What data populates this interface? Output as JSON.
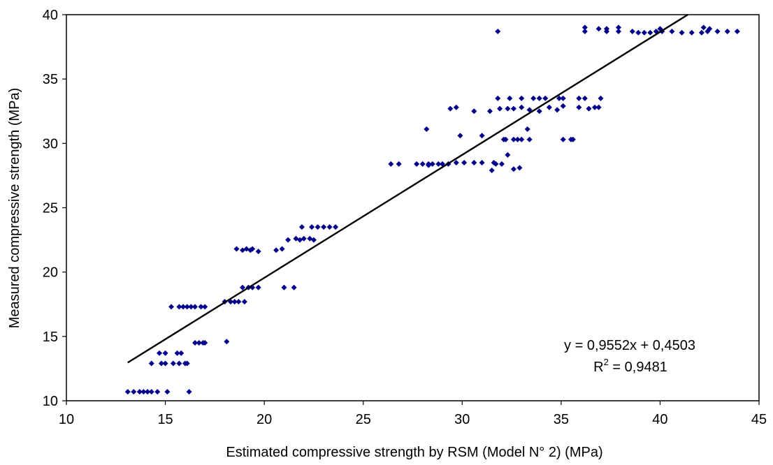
{
  "chart_data": {
    "type": "scatter",
    "title": "",
    "xlabel": "Estimated compressive strength by RSM (Model N° 2) (MPa)",
    "ylabel": "Measured compressive strength (MPa)",
    "xlim": [
      10,
      45
    ],
    "ylim": [
      10,
      40
    ],
    "xticks": [
      "10",
      "15",
      "20",
      "25",
      "30",
      "35",
      "40",
      "45"
    ],
    "yticks": [
      "10",
      "15",
      "20",
      "25",
      "30",
      "35",
      "40"
    ],
    "grid": false,
    "legend": "none",
    "marker_color": "#00008B",
    "trendline": {
      "slope": 0.9552,
      "intercept": 0.4503,
      "x_range": [
        13.1,
        41.4
      ],
      "color": "#000000"
    },
    "annotations": {
      "equation": "y = 0,9552x + 0,4503",
      "r2_prefix": "R",
      "r2_sup": "2",
      "r2_suffix": " = 0,9481"
    },
    "series": [
      {
        "x": [
          13.1,
          13.4,
          13.7,
          13.9,
          14.1,
          14.3,
          14.6,
          15.1,
          16.2,
          14.3,
          14.8,
          15.0,
          15.4,
          15.7,
          16.1,
          16.0,
          14.7,
          15.0,
          15.6,
          15.8,
          16.5,
          16.7,
          16.9,
          17.0,
          15.3,
          15.7,
          15.9,
          16.1,
          16.3,
          16.5,
          16.8,
          17.0,
          18.1,
          18.0,
          18.3,
          18.5,
          18.7,
          19.0,
          18.9,
          19.2,
          19.4,
          19.7,
          21.0,
          21.5,
          18.6,
          18.9,
          19.1,
          19.3,
          19.4,
          19.7,
          20.6,
          20.9,
          21.2,
          21.6,
          21.8,
          22.0,
          22.3,
          22.5,
          21.9,
          22.4,
          22.7,
          23.0,
          23.3,
          23.6,
          26.4,
          26.8,
          27.7,
          28.0,
          28.3,
          28.5,
          28.8,
          29.0,
          29.3,
          29.7,
          30.1,
          30.6,
          31.0,
          31.6,
          31.7,
          32.0,
          32.6,
          32.9,
          28.2,
          28.3,
          29.9,
          31.0,
          32.3,
          31.5,
          33.3,
          29.4,
          29.7,
          30.6,
          31.4,
          31.9,
          32.3,
          32.6,
          33.0,
          33.4,
          33.9,
          34.4,
          34.8,
          35.1,
          35.9,
          36.4,
          36.7,
          36.9,
          31.8,
          32.4,
          33.0,
          33.6,
          33.9,
          34.2,
          34.9,
          35.1,
          35.9,
          36.2,
          37.0,
          32.1,
          32.8,
          32.2,
          32.6,
          33.0,
          33.4,
          35.1,
          35.5,
          35.6,
          31.8,
          36.2,
          36.2,
          36.9,
          37.3,
          37.3,
          37.9,
          37.9,
          38.6,
          38.9,
          39.2,
          39.5,
          39.8,
          40.1,
          40.6,
          41.1,
          41.6,
          42.1,
          42.4,
          42.9,
          43.4,
          43.9,
          40.0,
          42.2,
          42.5
        ],
        "y": [
          10.7,
          10.7,
          10.7,
          10.7,
          10.7,
          10.7,
          10.7,
          10.7,
          10.7,
          12.9,
          12.9,
          12.9,
          12.9,
          12.9,
          12.9,
          12.9,
          13.7,
          13.7,
          13.7,
          13.7,
          14.5,
          14.5,
          14.5,
          14.5,
          17.3,
          17.3,
          17.3,
          17.3,
          17.3,
          17.3,
          17.3,
          17.3,
          14.6,
          17.7,
          17.7,
          17.7,
          17.7,
          17.7,
          18.8,
          18.8,
          18.8,
          18.8,
          18.8,
          18.8,
          21.8,
          21.7,
          21.8,
          21.7,
          21.8,
          21.6,
          21.7,
          21.8,
          22.5,
          22.6,
          22.5,
          22.6,
          22.6,
          22.5,
          23.5,
          23.5,
          23.5,
          23.5,
          23.5,
          23.5,
          28.4,
          28.4,
          28.4,
          28.4,
          28.4,
          28.4,
          28.4,
          28.4,
          28.4,
          28.5,
          28.5,
          28.5,
          28.5,
          28.5,
          28.4,
          28.4,
          28.0,
          28.1,
          31.1,
          28.3,
          30.6,
          30.6,
          29.1,
          27.9,
          31.1,
          32.7,
          32.8,
          32.5,
          32.5,
          32.7,
          32.7,
          32.7,
          32.8,
          32.6,
          32.5,
          32.8,
          32.6,
          32.9,
          32.8,
          32.7,
          32.8,
          32.8,
          33.5,
          33.5,
          33.5,
          33.5,
          33.5,
          33.5,
          33.5,
          33.5,
          33.5,
          33.5,
          33.5,
          30.3,
          30.3,
          30.3,
          30.3,
          30.3,
          30.3,
          30.3,
          30.3,
          30.3,
          38.7,
          39.0,
          38.7,
          38.9,
          38.9,
          38.7,
          39.0,
          38.7,
          38.7,
          38.6,
          38.6,
          38.6,
          38.7,
          38.7,
          38.7,
          38.6,
          38.6,
          38.6,
          38.7,
          38.7,
          38.7,
          38.7,
          38.9,
          39.0,
          38.9
        ]
      }
    ]
  }
}
